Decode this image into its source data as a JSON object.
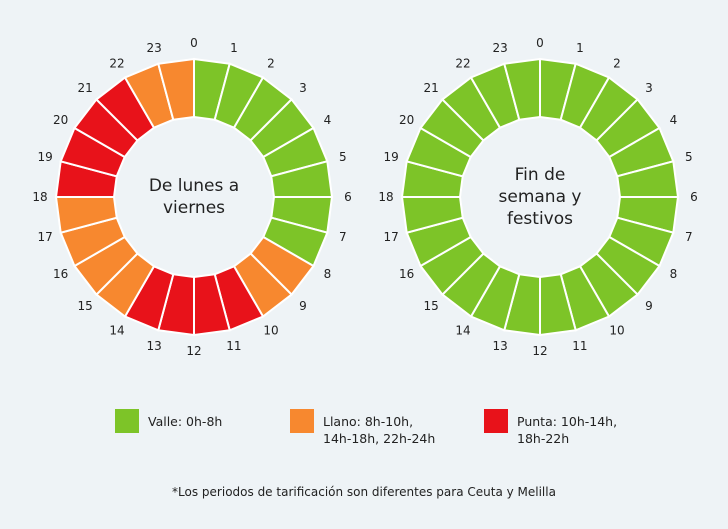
{
  "colors": {
    "valle": "#7dc428",
    "llano": "#f7882f",
    "punta": "#e8121a"
  },
  "chart_data": [
    {
      "type": "pie",
      "title_lines": [
        "De lunes a",
        "viernes"
      ],
      "hours": [
        "0",
        "1",
        "2",
        "3",
        "4",
        "5",
        "6",
        "7",
        "8",
        "9",
        "10",
        "11",
        "12",
        "13",
        "14",
        "15",
        "16",
        "17",
        "18",
        "19",
        "20",
        "21",
        "22",
        "23"
      ],
      "periods": [
        "valle",
        "valle",
        "valle",
        "valle",
        "valle",
        "valle",
        "valle",
        "valle",
        "llano",
        "llano",
        "punta",
        "punta",
        "punta",
        "punta",
        "llano",
        "llano",
        "llano",
        "llano",
        "punta",
        "punta",
        "punta",
        "punta",
        "llano",
        "llano"
      ]
    },
    {
      "type": "pie",
      "title_lines": [
        "Fin de",
        "semana y",
        "festivos"
      ],
      "hours": [
        "0",
        "1",
        "2",
        "3",
        "4",
        "5",
        "6",
        "7",
        "8",
        "9",
        "10",
        "11",
        "12",
        "13",
        "14",
        "15",
        "16",
        "17",
        "18",
        "19",
        "20",
        "21",
        "22",
        "23"
      ],
      "periods": [
        "valle",
        "valle",
        "valle",
        "valle",
        "valle",
        "valle",
        "valle",
        "valle",
        "valle",
        "valle",
        "valle",
        "valle",
        "valle",
        "valle",
        "valle",
        "valle",
        "valle",
        "valle",
        "valle",
        "valle",
        "valle",
        "valle",
        "valle",
        "valle"
      ]
    }
  ],
  "legend": [
    {
      "key": "valle",
      "lines": [
        "Valle: 0h-8h"
      ]
    },
    {
      "key": "llano",
      "lines": [
        "Llano: 8h-10h,",
        "14h-18h, 22h-24h"
      ]
    },
    {
      "key": "punta",
      "lines": [
        "Punta: 10h-14h,",
        "18h-22h"
      ]
    }
  ],
  "footnote": "*Los periodos de tarificación son diferentes para Ceuta y Melilla"
}
